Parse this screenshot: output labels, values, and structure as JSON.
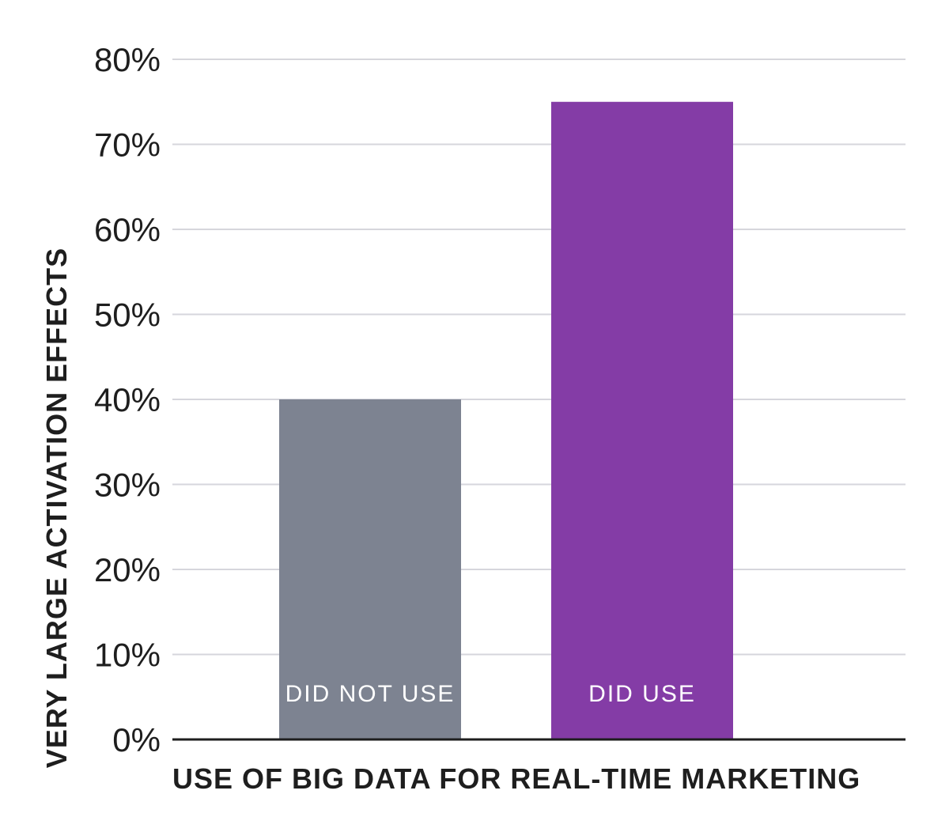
{
  "chart_data": {
    "type": "bar",
    "title": "",
    "xlabel": "USE OF BIG DATA FOR REAL-TIME MARKETING",
    "ylabel": "VERY LARGE ACTIVATION EFFECTS",
    "categories": [
      "DID NOT USE",
      "DID USE"
    ],
    "values": [
      40,
      75
    ],
    "ylim": [
      0,
      80
    ],
    "yticks": [
      0,
      10,
      20,
      30,
      40,
      50,
      60,
      70,
      80
    ],
    "ytick_labels": [
      "0%",
      "10%",
      "20%",
      "30%",
      "40%",
      "50%",
      "60%",
      "70%",
      "80%"
    ],
    "grid": true,
    "bar_colors": [
      "#7d8391",
      "#843ca6"
    ],
    "grid_color": "#d6d6dc",
    "axis_color": "#1e1e1e"
  }
}
